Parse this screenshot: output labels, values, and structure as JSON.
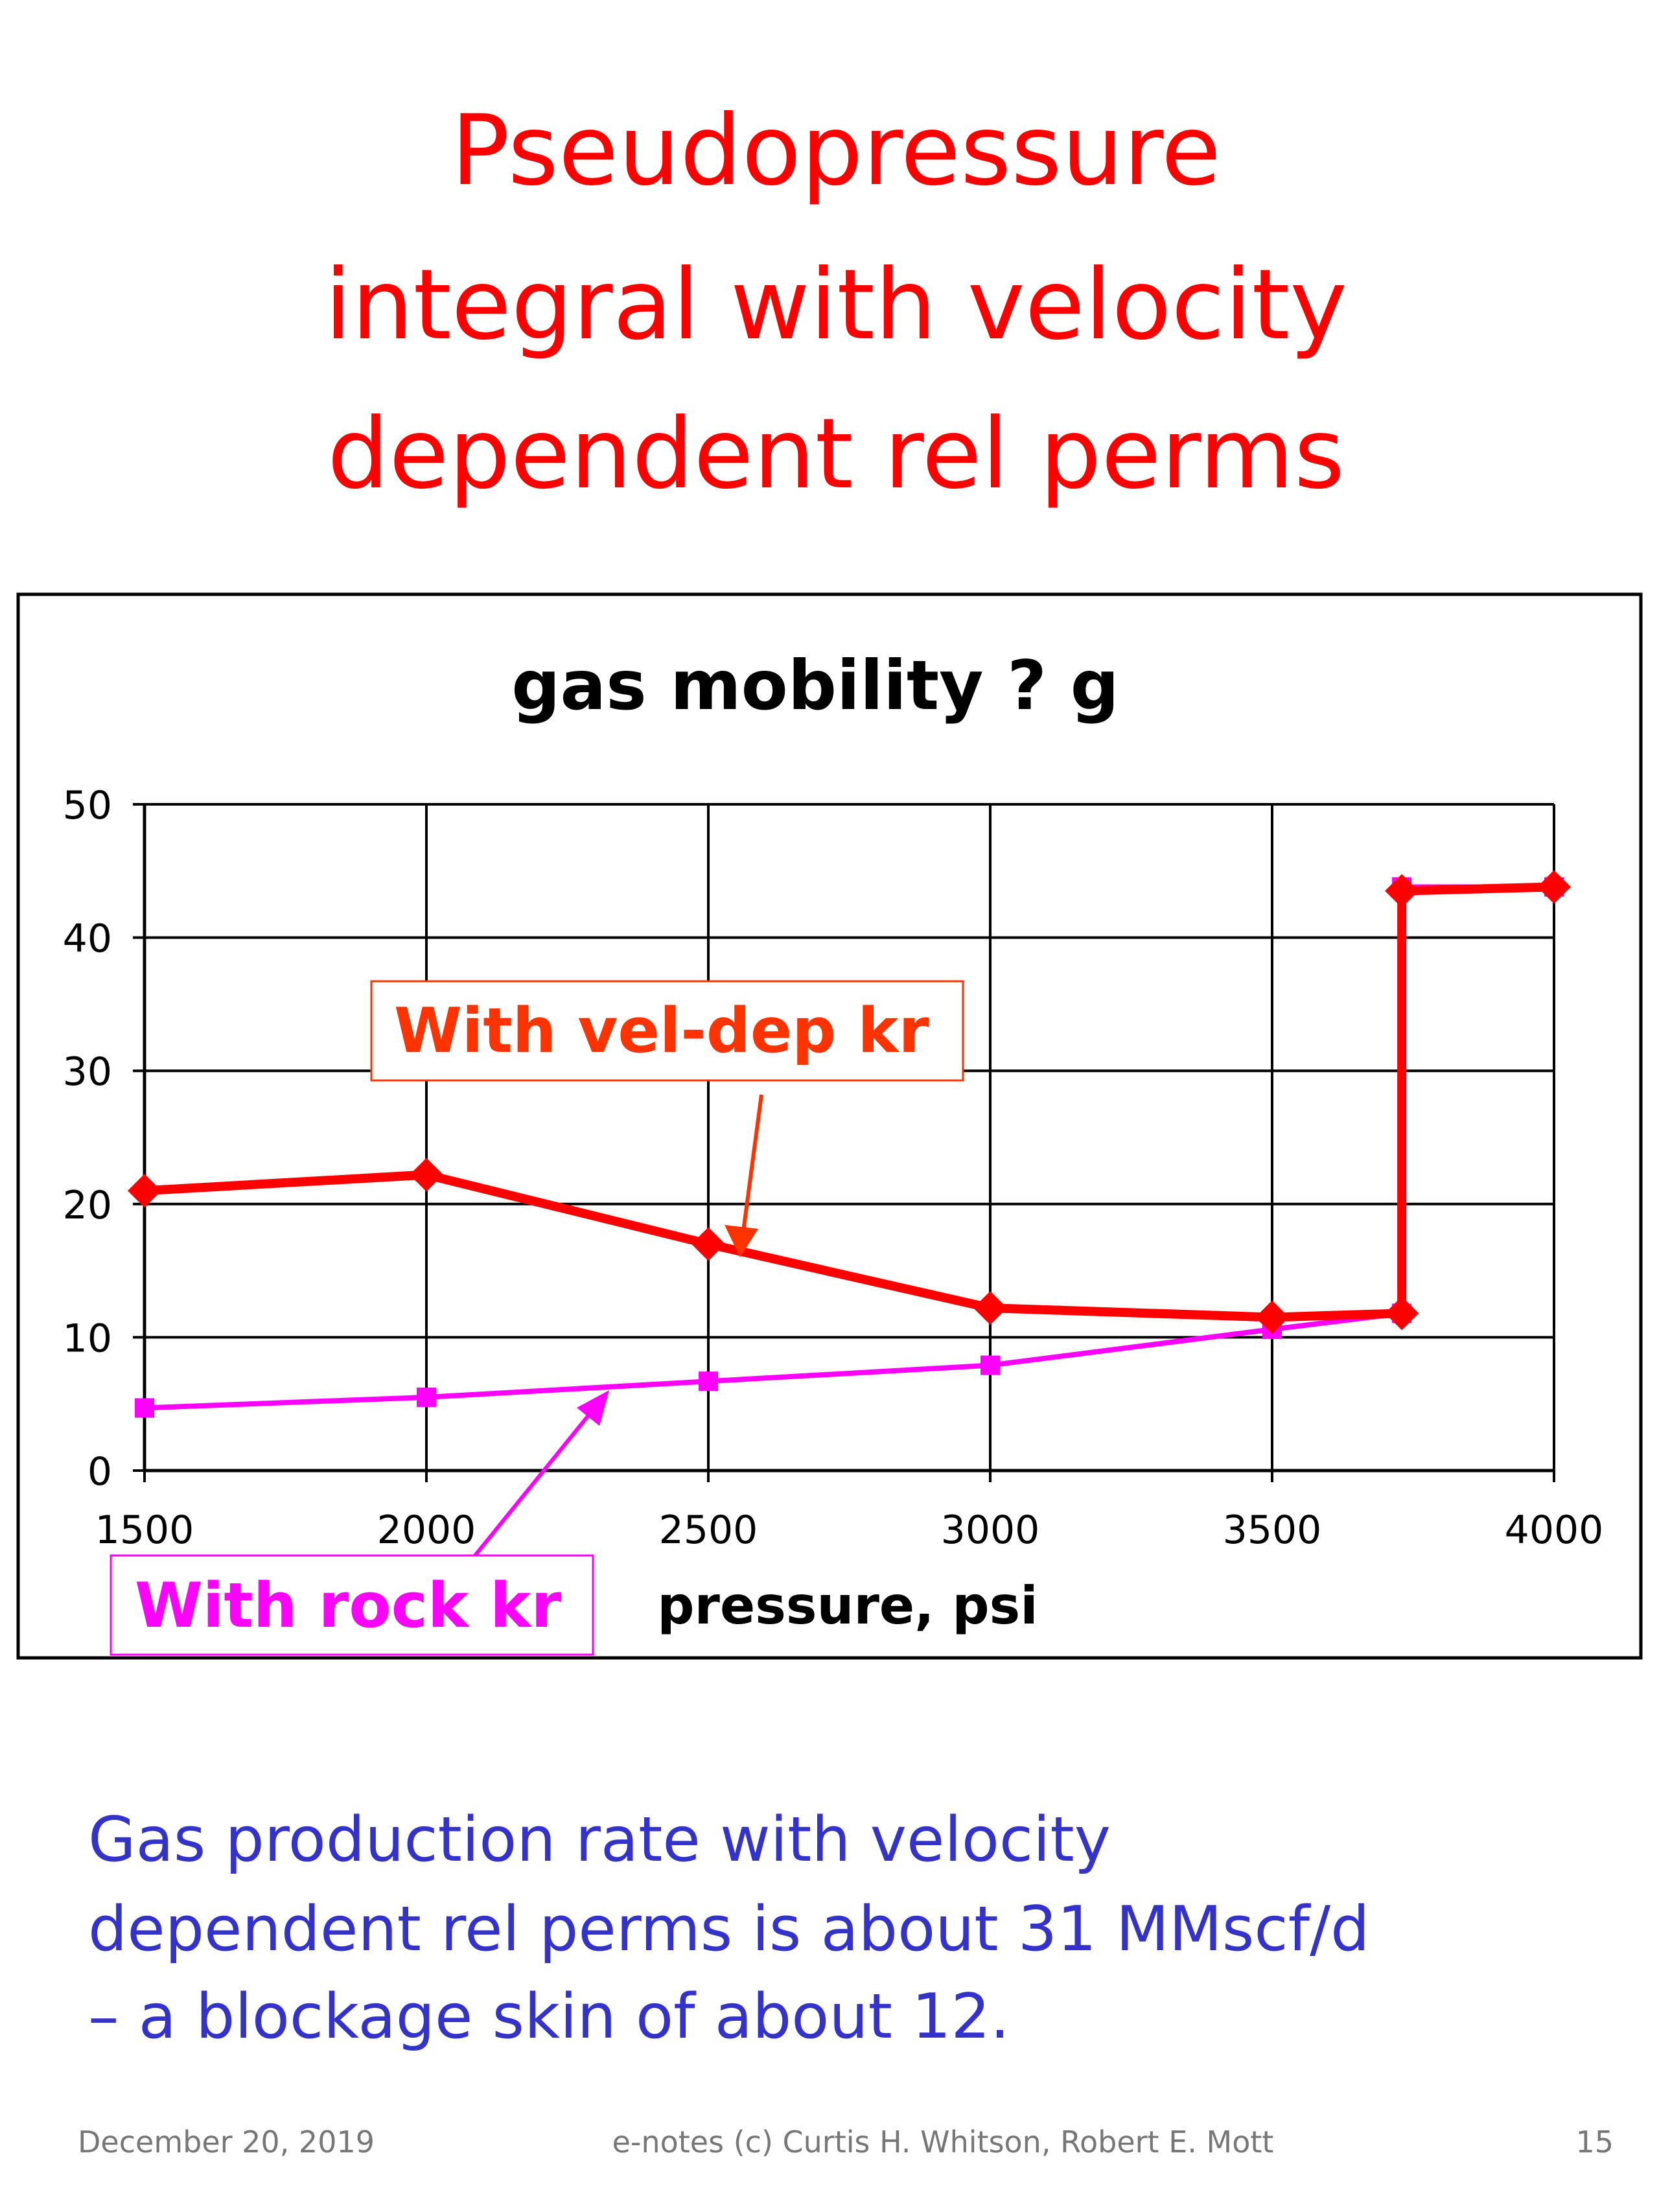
{
  "slide": {
    "title_lines": [
      "Pseudopressure",
      "integral with velocity",
      "dependent rel perms"
    ],
    "body_lines": [
      "Gas production rate with velocity",
      "dependent rel perms is about 31 MMscf/d",
      "– a blockage skin of about 12."
    ],
    "footer": {
      "date": "December 20, 2019",
      "credit": "e-notes (c) Curtis H. Whitson, Robert E. Mott",
      "page": "15"
    }
  },
  "chart_data": {
    "type": "line",
    "title": "gas mobility ? g",
    "x_label": "pressure, psi",
    "xlim": [
      1500,
      4000
    ],
    "xticks": [
      1500,
      2000,
      2500,
      3000,
      3500,
      4000
    ],
    "ylim": [
      0,
      50
    ],
    "yticks": [
      0,
      10,
      20,
      30,
      40,
      50
    ],
    "grid": true,
    "series": [
      {
        "name": "With rock kr",
        "color": "#ff00ff",
        "marker": "square",
        "x": [
          1500,
          2000,
          2500,
          3000,
          3500,
          3730,
          3730,
          4000
        ],
        "values": [
          4.7,
          5.5,
          6.7,
          7.9,
          10.6,
          11.8,
          43.8,
          43.8
        ]
      },
      {
        "name": "With vel-dep kr",
        "color": "#ff0000",
        "marker": "diamond",
        "x": [
          1500,
          2000,
          2500,
          3000,
          3500,
          3730,
          3730,
          4000
        ],
        "values": [
          21,
          22.2,
          17,
          12.2,
          11.5,
          11.8,
          43.5,
          43.8
        ]
      }
    ]
  }
}
